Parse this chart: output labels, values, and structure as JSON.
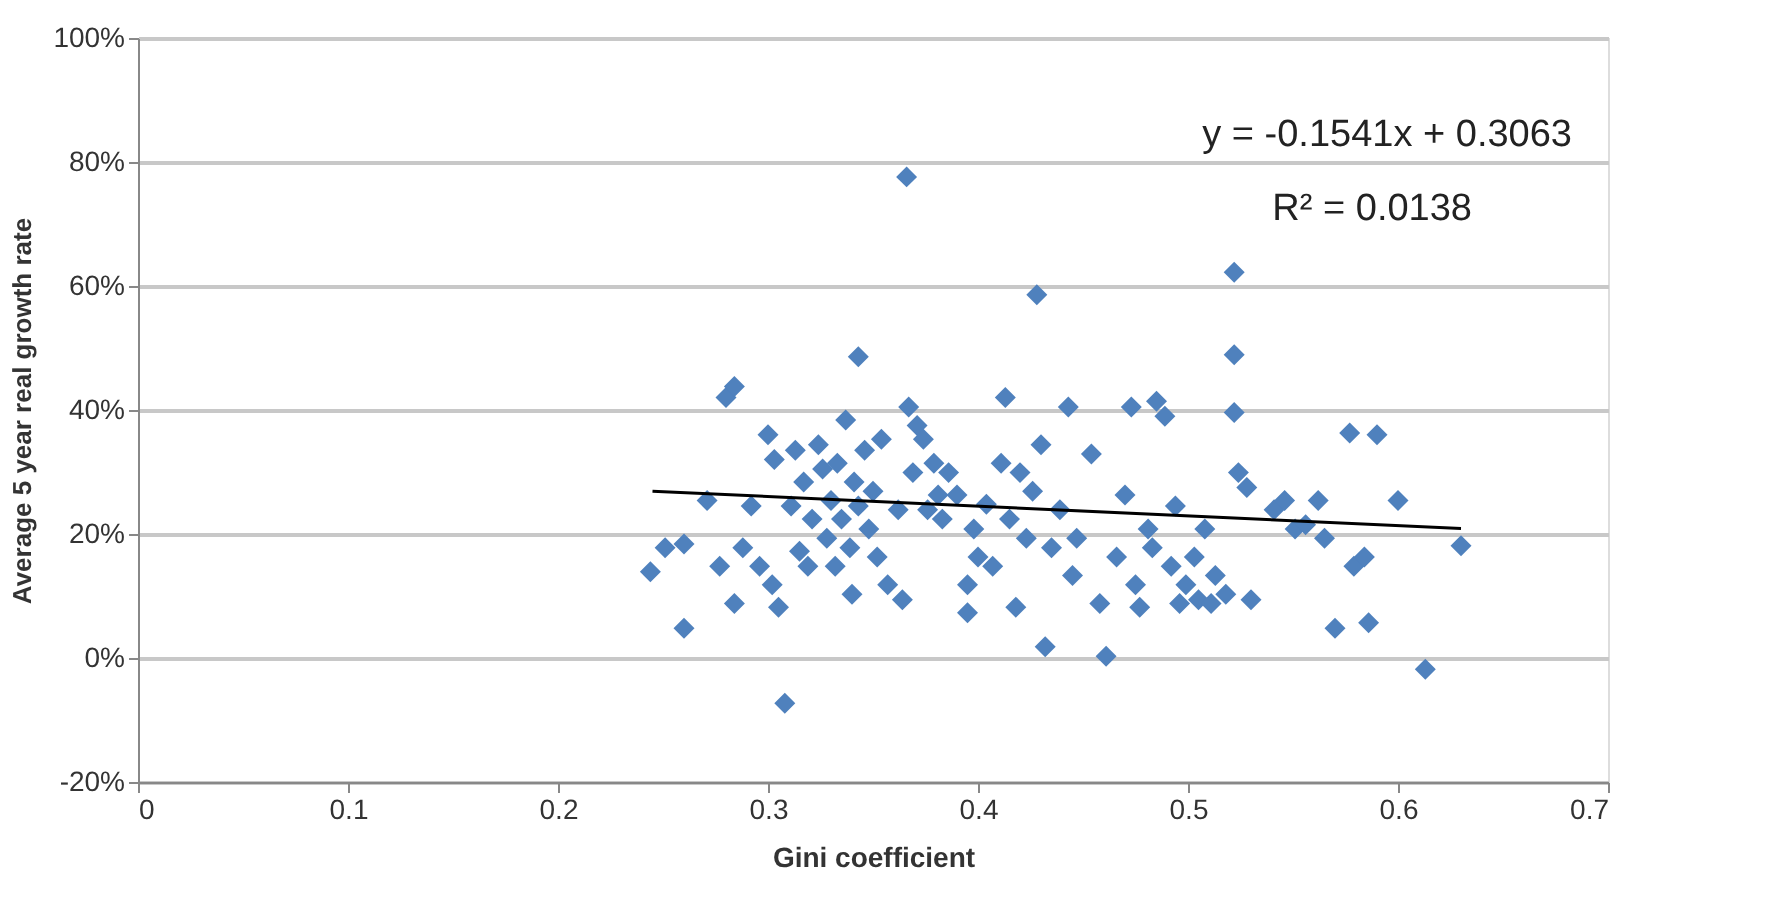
{
  "chart_data": {
    "type": "scatter",
    "xlabel": "Gini coefficient",
    "ylabel": "Average 5 year real growth rate",
    "xlim": [
      0,
      0.7
    ],
    "xticks": [
      0,
      0.1,
      0.2,
      0.3,
      0.4,
      0.5,
      0.6,
      0.7
    ],
    "ylim": [
      -20,
      100
    ],
    "yticks": [
      {
        "value": -20,
        "label": "-20%"
      },
      {
        "value": 0,
        "label": "0%"
      },
      {
        "value": 20,
        "label": "20%"
      },
      {
        "value": 40,
        "label": "40%"
      },
      {
        "value": 60,
        "label": "60%"
      },
      {
        "value": 80,
        "label": "80%"
      },
      {
        "value": 100,
        "label": "100%"
      }
    ],
    "grid": "y",
    "annotations": [
      "y = -0.1541x + 0.3063",
      "R² = 0.0138"
    ],
    "series": [
      {
        "marker": "diamond",
        "color": "#4f81bd",
        "x": [
          0.244,
          0.251,
          0.26,
          0.26,
          0.271,
          0.277,
          0.28,
          0.284,
          0.288,
          0.284,
          0.292,
          0.296,
          0.3,
          0.302,
          0.303,
          0.305,
          0.308,
          0.311,
          0.313,
          0.315,
          0.317,
          0.319,
          0.321,
          0.324,
          0.326,
          0.328,
          0.33,
          0.332,
          0.333,
          0.335,
          0.337,
          0.339,
          0.341,
          0.343,
          0.343,
          0.346,
          0.348,
          0.35,
          0.352,
          0.354,
          0.357,
          0.34,
          0.362,
          0.364,
          0.366,
          0.367,
          0.369,
          0.371,
          0.374,
          0.376,
          0.379,
          0.381,
          0.383,
          0.386,
          0.39,
          0.395,
          0.395,
          0.398,
          0.4,
          0.404,
          0.407,
          0.411,
          0.413,
          0.415,
          0.418,
          0.42,
          0.423,
          0.426,
          0.428,
          0.43,
          0.432,
          0.435,
          0.439,
          0.443,
          0.445,
          0.447,
          0.454,
          0.458,
          0.461,
          0.466,
          0.47,
          0.473,
          0.475,
          0.477,
          0.481,
          0.483,
          0.485,
          0.489,
          0.492,
          0.494,
          0.496,
          0.499,
          0.503,
          0.505,
          0.508,
          0.511,
          0.513,
          0.518,
          0.522,
          0.522,
          0.522,
          0.524,
          0.528,
          0.53,
          0.541,
          0.546,
          0.551,
          0.556,
          0.562,
          0.565,
          0.57,
          0.577,
          0.579,
          0.584,
          0.586,
          0.59,
          0.6,
          0.613,
          0.63
        ],
        "values": [
          13.9,
          17.8,
          18.4,
          4.8,
          25.4,
          14.8,
          42.0,
          43.8,
          17.8,
          8.8,
          24.5,
          14.8,
          36.0,
          11.8,
          32.0,
          8.2,
          -7.3,
          24.5,
          33.5,
          17.2,
          28.4,
          14.8,
          22.4,
          34.4,
          30.5,
          19.3,
          25.4,
          14.8,
          31.4,
          22.4,
          38.4,
          17.8,
          28.4,
          48.6,
          24.5,
          33.5,
          20.8,
          26.9,
          16.3,
          35.3,
          11.8,
          10.3,
          23.9,
          9.4,
          77.6,
          40.5,
          29.9,
          37.5,
          35.3,
          23.9,
          31.4,
          26.3,
          22.4,
          29.9,
          26.3,
          11.8,
          7.3,
          20.8,
          16.3,
          24.8,
          14.8,
          31.4,
          42.0,
          22.4,
          8.2,
          29.9,
          19.3,
          26.9,
          58.6,
          34.4,
          1.8,
          17.8,
          23.9,
          40.5,
          13.3,
          19.3,
          32.9,
          8.8,
          0.3,
          16.3,
          26.3,
          40.5,
          11.8,
          8.2,
          20.8,
          17.8,
          41.4,
          39.0,
          14.8,
          24.5,
          8.8,
          11.8,
          16.3,
          9.4,
          20.8,
          8.8,
          13.3,
          10.3,
          48.9,
          62.2,
          39.6,
          29.9,
          27.5,
          9.4,
          23.9,
          25.4,
          20.8,
          21.5,
          25.4,
          19.3,
          4.8,
          36.3,
          14.8,
          16.3,
          5.7,
          36.0,
          25.4,
          -1.8,
          18.1
        ]
      },
      {
        "type": "line",
        "marker": "none",
        "color": "#000000",
        "x": [
          0.245,
          0.63
        ],
        "values": [
          26.9,
          20.9
        ]
      }
    ]
  }
}
